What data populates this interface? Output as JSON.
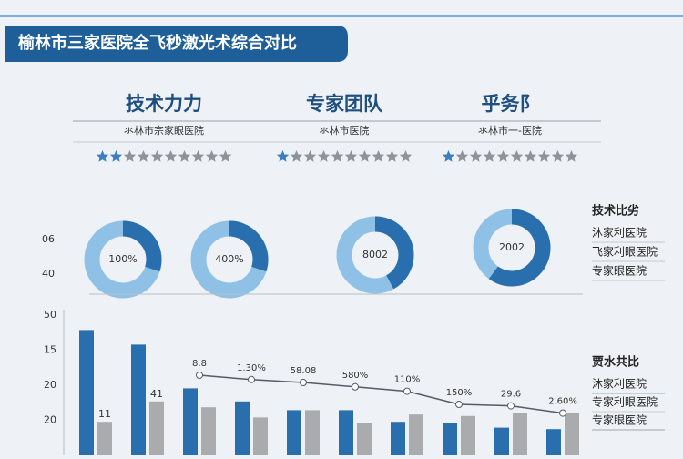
{
  "title": "榆林市三家医院全飞秒激光术综合对比",
  "columns": [
    {
      "heading": "技术力力",
      "subheading": "氺林市宗家眼医院",
      "rating": 2
    },
    {
      "heading": "专家团队",
      "subheading": "氺林市医院",
      "rating": 1
    },
    {
      "heading": "乎务阝",
      "subheading": "氺林市一-医院",
      "rating": 1
    }
  ],
  "donuts": [
    {
      "label": "100%",
      "share": 30
    },
    {
      "label": "400%",
      "share": 30
    },
    {
      "label": "8002",
      "share": 42
    },
    {
      "label": "2002",
      "share": 60
    }
  ],
  "side_labels": [
    "06",
    "40"
  ],
  "legend1": {
    "title": "技术比劣",
    "items": [
      "沐家利医院",
      "飞家利眼医院",
      "专家眼医院"
    ]
  },
  "chart_data": {
    "type": "bar",
    "legend_title": "贾水共比",
    "y_labels": [
      "50",
      "15",
      "20",
      "20"
    ],
    "ylim": [
      0,
      100
    ],
    "series": [
      {
        "name": "沐家利医院",
        "color": "#2a6fad",
        "values": [
          86,
          76,
          46,
          37,
          31,
          31,
          23,
          22,
          19,
          18
        ]
      },
      {
        "name": "专家利眼医院",
        "color": "#a9abad",
        "values": [
          23,
          37,
          33,
          26,
          31,
          22,
          28,
          27,
          29,
          29
        ]
      },
      {
        "name": "专家眼医院",
        "color": "#555c66",
        "type": "line",
        "values": [
          null,
          null,
          55,
          52,
          50,
          47,
          44,
          35,
          34,
          29
        ]
      }
    ],
    "bar_labels": [
      "11",
      "41"
    ],
    "annotations": [
      "8.8",
      "1.30%",
      "58.08",
      "580%",
      "110%",
      "150%",
      "29.6",
      "2.60%"
    ]
  }
}
